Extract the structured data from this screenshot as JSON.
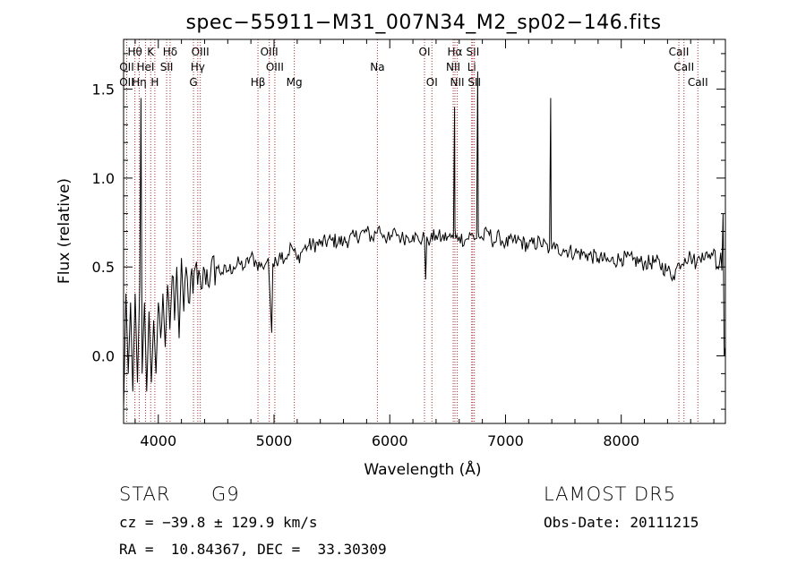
{
  "chart_data": {
    "type": "line",
    "title": "spec−55911−M31_007N34_M2_sp02−146.fits",
    "xlabel": "Wavelength (Å)",
    "ylabel": "Flux (relative)",
    "xlim": [
      3700,
      8900
    ],
    "ylim": [
      -0.38,
      1.78
    ],
    "xticks": [
      4000,
      5000,
      6000,
      7000,
      8000
    ],
    "xtick_labels": [
      "4000",
      "5000",
      "6000",
      "7000",
      "8000"
    ],
    "yticks": [
      0.0,
      0.5,
      1.0,
      1.5
    ],
    "ytick_labels": [
      "0.0",
      "0.5",
      "1.0",
      "1.5"
    ],
    "grid": false,
    "line_color": "#000000",
    "marker_line_color": "#a83232",
    "line_markers": [
      {
        "wavelength": 3798,
        "label": "Hθ",
        "row": 1
      },
      {
        "wavelength": 3727,
        "label": "OII",
        "row": 2
      },
      {
        "wavelength": 3727,
        "label": "OII",
        "row": 3
      },
      {
        "wavelength": 3889,
        "label": "HeI",
        "row": 2
      },
      {
        "wavelength": 3835,
        "label": "Hη",
        "row": 3
      },
      {
        "wavelength": 3934,
        "label": "K",
        "row": 1
      },
      {
        "wavelength": 3970,
        "label": "H",
        "row": 3
      },
      {
        "wavelength": 4102,
        "label": "Hδ",
        "row": 1
      },
      {
        "wavelength": 4072,
        "label": "SII",
        "row": 2
      },
      {
        "wavelength": 4363,
        "label": "OIII",
        "row": 1
      },
      {
        "wavelength": 4341,
        "label": "Hγ",
        "row": 2
      },
      {
        "wavelength": 4304,
        "label": "G",
        "row": 3
      },
      {
        "wavelength": 4861,
        "label": "Hβ",
        "row": 3
      },
      {
        "wavelength": 4959,
        "label": "OIII",
        "row": 1
      },
      {
        "wavelength": 5007,
        "label": "OIII",
        "row": 2
      },
      {
        "wavelength": 5175,
        "label": "Mg",
        "row": 3
      },
      {
        "wavelength": 5893,
        "label": "Na",
        "row": 2
      },
      {
        "wavelength": 6300,
        "label": "OI",
        "row": 1
      },
      {
        "wavelength": 6364,
        "label": "OI",
        "row": 3
      },
      {
        "wavelength": 6563,
        "label": "Hα",
        "row": 1
      },
      {
        "wavelength": 6548,
        "label": "NII",
        "row": 2
      },
      {
        "wavelength": 6583,
        "label": "NII",
        "row": 3
      },
      {
        "wavelength": 6717,
        "label": "SII",
        "row": 1
      },
      {
        "wavelength": 6708,
        "label": "Li",
        "row": 2
      },
      {
        "wavelength": 6731,
        "label": "SII",
        "row": 3
      },
      {
        "wavelength": 8498,
        "label": "CaII",
        "row": 1
      },
      {
        "wavelength": 8542,
        "label": "CaII",
        "row": 2
      },
      {
        "wavelength": 8662,
        "label": "CaII",
        "row": 3
      }
    ],
    "series": [
      {
        "x": [
          3700,
          3720,
          3740,
          3760,
          3780,
          3800,
          3820,
          3840,
          3850,
          3860,
          3880,
          3900,
          3920,
          3940,
          3960,
          3980,
          4000,
          4020,
          4040,
          4060,
          4080,
          4100,
          4120,
          4140,
          4160,
          4180,
          4200,
          4220,
          4240,
          4260,
          4280,
          4300,
          4320,
          4340,
          4360,
          4380,
          4400,
          4450,
          4500,
          4550,
          4600,
          4650,
          4700,
          4750,
          4800,
          4850,
          4900,
          4950,
          4980,
          4990,
          5000,
          5050,
          5100,
          5150,
          5200,
          5250,
          5300,
          5400,
          5500,
          5600,
          5700,
          5800,
          5850,
          5900,
          5950,
          6000,
          6050,
          6100,
          6150,
          6200,
          6250,
          6300,
          6310,
          6320,
          6350,
          6400,
          6450,
          6500,
          6550,
          6560,
          6563,
          6570,
          6600,
          6650,
          6700,
          6750,
          6760,
          6765,
          6770,
          6800,
          6850,
          6900,
          6950,
          7000,
          7100,
          7200,
          7300,
          7380,
          7390,
          7395,
          7400,
          7410,
          7430,
          7500,
          7600,
          7700,
          7800,
          7900,
          8000,
          8100,
          8200,
          8300,
          8400,
          8450,
          8500,
          8550,
          8600,
          8650,
          8700,
          8750,
          8800,
          8830,
          8850,
          8860,
          8870,
          8880,
          8890,
          8900
        ],
        "y": [
          -0.3,
          0.35,
          -0.1,
          0.3,
          -0.2,
          0.35,
          -0.15,
          0.4,
          1.45,
          -0.1,
          0.3,
          -0.2,
          0.25,
          -0.15,
          0.2,
          -0.1,
          0.3,
          0.1,
          0.35,
          0.05,
          0.4,
          0.15,
          0.45,
          0.2,
          0.5,
          0.1,
          0.55,
          0.25,
          0.5,
          0.3,
          0.45,
          0.35,
          0.5,
          0.4,
          0.45,
          0.38,
          0.48,
          0.45,
          0.5,
          0.47,
          0.48,
          0.5,
          0.52,
          0.5,
          0.56,
          0.52,
          0.5,
          0.55,
          0.13,
          0.52,
          0.5,
          0.58,
          0.55,
          0.62,
          0.54,
          0.6,
          0.62,
          0.63,
          0.65,
          0.64,
          0.67,
          0.7,
          0.66,
          0.72,
          0.68,
          0.65,
          0.7,
          0.66,
          0.67,
          0.68,
          0.65,
          0.66,
          0.43,
          0.67,
          0.65,
          0.68,
          0.66,
          0.67,
          0.66,
          1.4,
          0.72,
          0.66,
          0.67,
          0.65,
          0.68,
          0.66,
          1.6,
          0.7,
          0.67,
          0.66,
          0.7,
          0.64,
          0.67,
          0.63,
          0.65,
          0.62,
          0.64,
          0.6,
          1.45,
          0.66,
          0.6,
          0.62,
          0.6,
          0.6,
          0.58,
          0.57,
          0.55,
          0.53,
          0.55,
          0.54,
          0.52,
          0.53,
          0.48,
          0.45,
          0.52,
          0.55,
          0.56,
          0.52,
          0.58,
          0.55,
          0.6,
          0.5,
          0.52,
          0.58,
          0.48,
          0.8,
          0.0,
          0.05
        ]
      }
    ]
  },
  "info": {
    "object_class": "STAR",
    "subclass": "G9",
    "survey": "LAMOST DR5",
    "redshift": "cz = −39.8 ± 129.9 km/s",
    "obs_date": "Obs-Date: 20111215",
    "coords": "RA =  10.84367, DEC =  33.30309"
  }
}
